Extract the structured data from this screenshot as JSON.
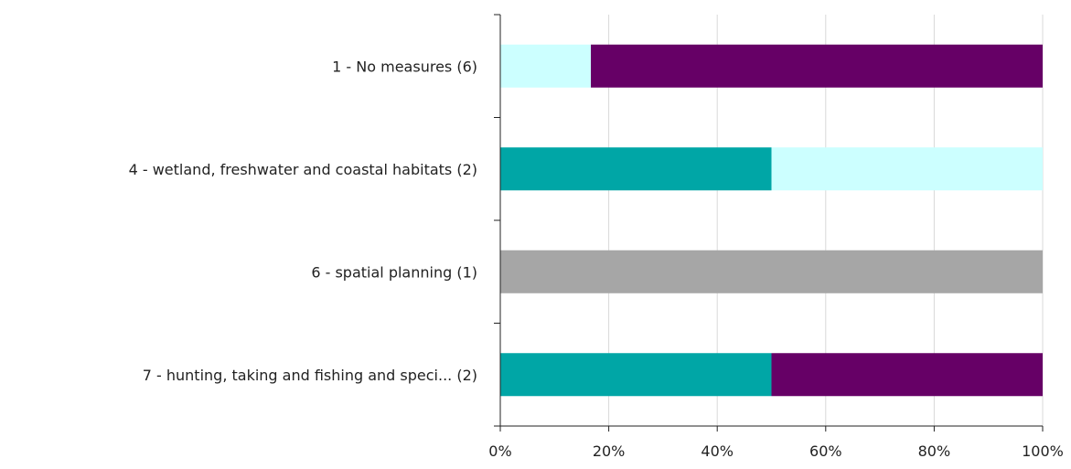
{
  "chart_data": {
    "type": "bar",
    "orientation": "horizontal",
    "stacked": "percent",
    "categories": [
      "1 - No measures (6)",
      "4 - wetland, freshwater and coastal habitats (2)",
      "6 - spatial planning (1)",
      "7 - hunting, taking and fishing and speci... (2)"
    ],
    "series": [
      {
        "color": "#00a6a6",
        "values": [
          0,
          50,
          0,
          50
        ]
      },
      {
        "color": "#ccffff",
        "values": [
          16.7,
          50,
          0,
          0
        ]
      },
      {
        "color": "#a6a6a6",
        "values": [
          0,
          0,
          100,
          0
        ]
      },
      {
        "color": "#660066",
        "values": [
          83.3,
          0,
          0,
          50
        ]
      }
    ],
    "xlim": [
      0,
      100
    ],
    "xticks": [
      "0%",
      "20%",
      "40%",
      "60%",
      "80%",
      "100%"
    ],
    "grid": true,
    "legend": "none",
    "title": "",
    "xlabel": "",
    "ylabel": ""
  }
}
